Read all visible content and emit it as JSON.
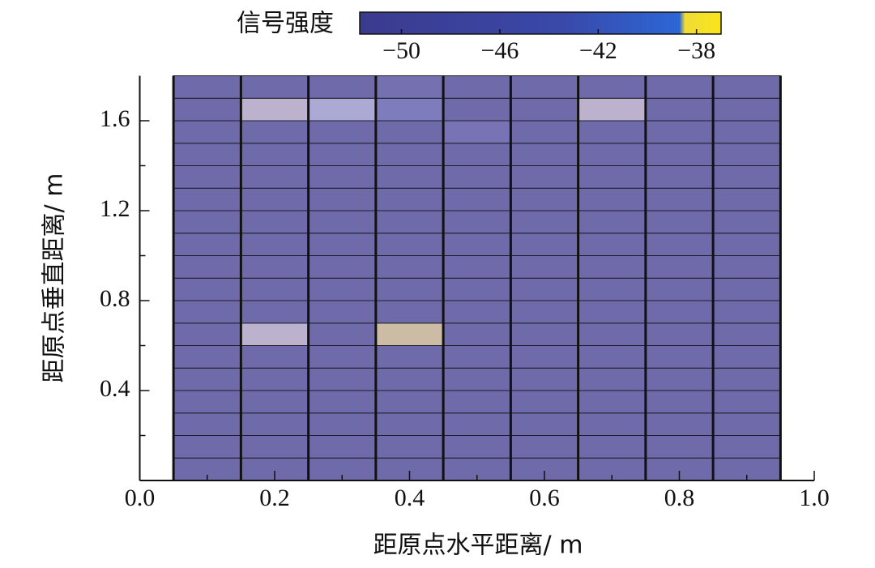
{
  "chart_data": {
    "type": "heatmap",
    "xlabel": "距原点水平距离/ m",
    "ylabel": "距原点垂直距离/ m",
    "x": [
      0.1,
      0.2,
      0.3,
      0.4,
      0.5,
      0.6,
      0.7,
      0.8,
      0.9
    ],
    "y": [
      0.05,
      0.15,
      0.25,
      0.35,
      0.45,
      0.55,
      0.65,
      0.75,
      0.85,
      0.95,
      1.05,
      1.15,
      1.25,
      1.35,
      1.45,
      1.55,
      1.65,
      1.75
    ],
    "z": [
      [
        -51,
        -51,
        -51,
        -51,
        -51,
        -51,
        -51,
        -51,
        -51
      ],
      [
        -51,
        -51,
        -51,
        -51,
        -51,
        -51,
        -51,
        -51,
        -51
      ],
      [
        -51,
        -51,
        -51,
        -51,
        -51,
        -51,
        -51,
        -51,
        -51
      ],
      [
        -51,
        -51,
        -51,
        -51,
        -51,
        -51,
        -51,
        -51,
        -51
      ],
      [
        -51,
        -51,
        -51,
        -51,
        -51,
        -51,
        -51,
        -51,
        -51
      ],
      [
        -51,
        -51,
        -51,
        -51,
        -51,
        -51,
        -51,
        -51,
        -51
      ],
      [
        -51,
        -40,
        -51,
        -38,
        -51,
        -51,
        -51,
        -51,
        -51
      ],
      [
        -51,
        -51,
        -51,
        -51,
        -51,
        -51,
        -51,
        -51,
        -51
      ],
      [
        -51,
        -51,
        -51,
        -51,
        -51,
        -51,
        -51,
        -51,
        -51
      ],
      [
        -51,
        -51,
        -51,
        -51,
        -51,
        -51,
        -51,
        -51,
        -51
      ],
      [
        -51,
        -51,
        -51,
        -51,
        -51,
        -51,
        -51,
        -51,
        -51
      ],
      [
        -51,
        -51,
        -51,
        -51,
        -51,
        -51,
        -51,
        -51,
        -51
      ],
      [
        -51,
        -51,
        -51,
        -51,
        -51,
        -51,
        -51,
        -51,
        -51
      ],
      [
        -51,
        -51,
        -51,
        -51,
        -51,
        -51,
        -51,
        -51,
        -51
      ],
      [
        -51,
        -51,
        -51,
        -51,
        -51,
        -51,
        -51,
        -51,
        -51
      ],
      [
        -51,
        -51,
        -51,
        -51,
        -47,
        -51,
        -51,
        -51,
        -51
      ],
      [
        -51,
        -40,
        -41,
        -43,
        -51,
        -51,
        -40,
        -51,
        -51
      ],
      [
        -51,
        -51,
        -51,
        -48,
        -51,
        -51,
        -51,
        -51,
        -51
      ]
    ],
    "xlim": [
      0,
      1
    ],
    "ylim": [
      0,
      1.8
    ],
    "xticks": [
      {
        "value": 0,
        "label": "0.0"
      },
      0.2,
      0.4,
      0.6,
      0.8,
      {
        "value": 1,
        "label": "1.0"
      }
    ],
    "yticks": [
      0.4,
      0.8,
      1.2,
      1.6
    ],
    "xminorticks": [
      0.1,
      0.3,
      0.5,
      0.7,
      0.9
    ],
    "yminorticks": [
      0.2,
      0.6,
      1.0,
      1.4
    ],
    "colorbar": {
      "label": "信号强度",
      "lim": [
        -51.7,
        -37
      ],
      "ticks": [
        {
          "value": -50,
          "label": "−50"
        },
        {
          "value": -46,
          "label": "−46"
        },
        {
          "value": -42,
          "label": "−42"
        },
        {
          "value": -38,
          "label": "−38"
        }
      ]
    }
  }
}
